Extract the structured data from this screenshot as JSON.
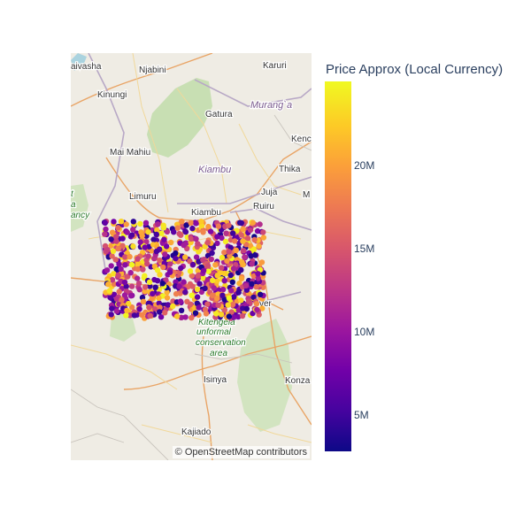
{
  "map": {
    "attribution": "© OpenStreetMap contributors",
    "places": [
      {
        "name": "aivasha",
        "kind": "town"
      },
      {
        "name": "Njabini",
        "kind": "town"
      },
      {
        "name": "Karuri",
        "kind": "town"
      },
      {
        "name": "Kinungi",
        "kind": "town"
      },
      {
        "name": "Gatura",
        "kind": "town"
      },
      {
        "name": "Murang`a",
        "kind": "region"
      },
      {
        "name": "Mai Mahiu",
        "kind": "town"
      },
      {
        "name": "Kiambu",
        "kind": "region"
      },
      {
        "name": "Kenc",
        "kind": "town"
      },
      {
        "name": "Thika",
        "kind": "town"
      },
      {
        "name": "Limuru",
        "kind": "town"
      },
      {
        "name": "Juja",
        "kind": "town"
      },
      {
        "name": "M",
        "kind": "town"
      },
      {
        "name": "Kiambu",
        "kind": "town"
      },
      {
        "name": "Ruiru",
        "kind": "town"
      },
      {
        "name": "ver",
        "kind": "town"
      },
      {
        "name": "Isinya",
        "kind": "town"
      },
      {
        "name": "Konza",
        "kind": "town"
      },
      {
        "name": "Kajiado",
        "kind": "town"
      },
      {
        "name": "Kitengela",
        "kind": "park"
      },
      {
        "name": "unformal",
        "kind": "park"
      },
      {
        "name": "conservation",
        "kind": "park"
      },
      {
        "name": "area",
        "kind": "park"
      },
      {
        "name": "t",
        "kind": "park"
      },
      {
        "name": "a",
        "kind": "park"
      },
      {
        "name": "ancy",
        "kind": "park"
      }
    ]
  },
  "colorbar": {
    "title": "Price Approx (Local Currency)",
    "ticks": [
      "5M",
      "10M",
      "15M",
      "20M"
    ],
    "scale": "plasma",
    "colors": [
      "#0d0887",
      "#46039f",
      "#7201a8",
      "#9c179e",
      "#bd3786",
      "#d8576b",
      "#ed7953",
      "#fb9f3a",
      "#fdca26",
      "#f0f921"
    ]
  },
  "chart_data": {
    "type": "scatter",
    "title": "",
    "color_label": "Price Approx (Local Currency)",
    "color_range": [
      3000000,
      25000000
    ],
    "n_points": 900,
    "approx_lon_range": [
      36.65,
      37.0
    ],
    "approx_lat_range": [
      -1.42,
      -1.15
    ]
  }
}
